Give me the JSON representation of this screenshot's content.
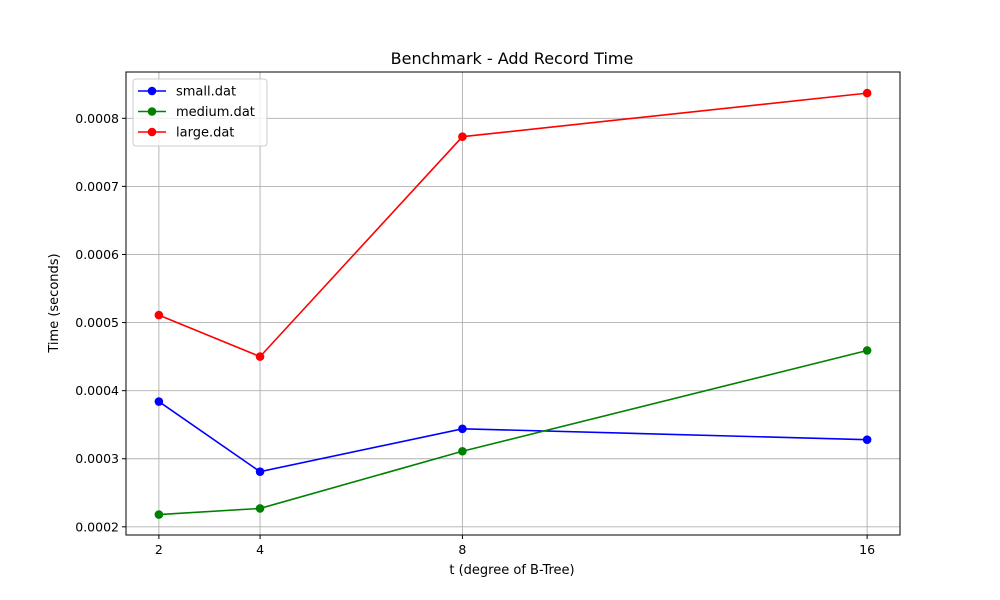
{
  "chart_data": {
    "type": "line",
    "title": "Benchmark - Add Record Time",
    "xlabel": "t (degree of B-Tree)",
    "ylabel": "Time (seconds)",
    "x": [
      2,
      4,
      8,
      16
    ],
    "x_ticks": [
      "2",
      "4",
      "8",
      "16"
    ],
    "xlim": [
      1.35,
      16.65
    ],
    "ylim": [
      0.000188,
      0.000868
    ],
    "y_ticks": [
      "0.0002",
      "0.0003",
      "0.0004",
      "0.0005",
      "0.0006",
      "0.0007",
      "0.0008"
    ],
    "y_tick_values": [
      0.0002,
      0.0003,
      0.0004,
      0.0005,
      0.0006,
      0.0007,
      0.0008
    ],
    "grid": true,
    "legend_position": "top-left",
    "series": [
      {
        "name": "small.dat",
        "color": "#0000ff",
        "values": [
          0.000384,
          0.000281,
          0.000344,
          0.000328
        ]
      },
      {
        "name": "medium.dat",
        "color": "#008000",
        "values": [
          0.000218,
          0.000227,
          0.000311,
          0.000459
        ]
      },
      {
        "name": "large.dat",
        "color": "#ff0000",
        "values": [
          0.000511,
          0.00045,
          0.000773,
          0.000837
        ]
      }
    ]
  }
}
